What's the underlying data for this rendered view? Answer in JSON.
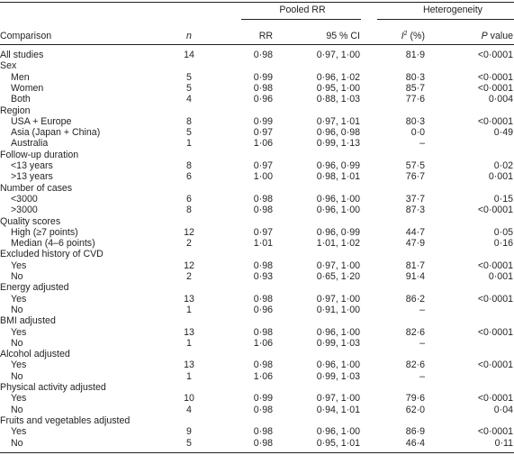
{
  "headers": {
    "comparison": "Comparison",
    "n": "n",
    "pooled_group": "Pooled RR",
    "rr": "RR",
    "ci": "95 % CI",
    "heterogeneity_group": "Heterogeneity",
    "i2_letter": "I",
    "i2_sup": "2",
    "i2_unit": " (%)",
    "p_letter": "P",
    "p_rest": " value"
  },
  "rows": [
    {
      "label": "All studies",
      "sub": false,
      "n": "14",
      "rr": "0·98",
      "ci": "0·97, 1·00",
      "i2": "81·9",
      "p": "<0·0001"
    },
    {
      "label": "Sex",
      "sub": false,
      "n": "",
      "rr": "",
      "ci": "",
      "i2": "",
      "p": ""
    },
    {
      "label": "Men",
      "sub": true,
      "n": "5",
      "rr": "0·99",
      "ci": "0·96, 1·02",
      "i2": "80·3",
      "p": "<0·0001"
    },
    {
      "label": "Women",
      "sub": true,
      "n": "5",
      "rr": "0·98",
      "ci": "0·95, 1·00",
      "i2": "85·7",
      "p": "<0·0001"
    },
    {
      "label": "Both",
      "sub": true,
      "n": "4",
      "rr": "0·96",
      "ci": "0·88, 1·03",
      "i2": "77·6",
      "p": "0·004"
    },
    {
      "label": "Region",
      "sub": false,
      "n": "",
      "rr": "",
      "ci": "",
      "i2": "",
      "p": ""
    },
    {
      "label": "USA + Europe",
      "sub": true,
      "n": "8",
      "rr": "0·99",
      "ci": "0·97, 1·01",
      "i2": "80·3",
      "p": "<0·0001"
    },
    {
      "label": "Asia (Japan + China)",
      "sub": true,
      "n": "5",
      "rr": "0·97",
      "ci": "0·96, 0·98",
      "i2": "0·0",
      "p": "0·49"
    },
    {
      "label": "Australia",
      "sub": true,
      "n": "1",
      "rr": "1·06",
      "ci": "0·99, 1·13",
      "i2": "–",
      "p": ""
    },
    {
      "label": "Follow-up duration",
      "sub": false,
      "n": "",
      "rr": "",
      "ci": "",
      "i2": "",
      "p": ""
    },
    {
      "label": "<13 years",
      "sub": true,
      "n": "8",
      "rr": "0·97",
      "ci": "0·96, 0·99",
      "i2": "57·5",
      "p": "0·02"
    },
    {
      "label": ">13 years",
      "sub": true,
      "n": "6",
      "rr": "1·00",
      "ci": "0·98, 1·01",
      "i2": "76·7",
      "p": "0·001"
    },
    {
      "label": "Number of cases",
      "sub": false,
      "n": "",
      "rr": "",
      "ci": "",
      "i2": "",
      "p": ""
    },
    {
      "label": "<3000",
      "sub": true,
      "n": "6",
      "rr": "0·98",
      "ci": "0·96, 1·00",
      "i2": "37·7",
      "p": "0·15"
    },
    {
      "label": ">3000",
      "sub": true,
      "n": "8",
      "rr": "0·98",
      "ci": "0·96, 1·00",
      "i2": "87·3",
      "p": "<0·0001"
    },
    {
      "label": "Quality scores",
      "sub": false,
      "n": "",
      "rr": "",
      "ci": "",
      "i2": "",
      "p": ""
    },
    {
      "label": "High (≥7 points)",
      "sub": true,
      "n": "12",
      "rr": "0·97",
      "ci": "0·96, 0·99",
      "i2": "44·7",
      "p": "0·05"
    },
    {
      "label": "Median (4–6 points)",
      "sub": true,
      "n": "2",
      "rr": "1·01",
      "ci": "1·01, 1·02",
      "i2": "47·9",
      "p": "0·16"
    },
    {
      "label": "Excluded history of CVD",
      "sub": false,
      "n": "",
      "rr": "",
      "ci": "",
      "i2": "",
      "p": ""
    },
    {
      "label": "Yes",
      "sub": true,
      "n": "12",
      "rr": "0·98",
      "ci": "0·97, 1·00",
      "i2": "81·7",
      "p": "<0·0001"
    },
    {
      "label": "No",
      "sub": true,
      "n": "2",
      "rr": "0·93",
      "ci": "0·65, 1·20",
      "i2": "91·4",
      "p": "0·001"
    },
    {
      "label": "Energy adjusted",
      "sub": false,
      "n": "",
      "rr": "",
      "ci": "",
      "i2": "",
      "p": ""
    },
    {
      "label": "Yes",
      "sub": true,
      "n": "13",
      "rr": "0·98",
      "ci": "0·97, 1·00",
      "i2": "86·2",
      "p": "<0·0001"
    },
    {
      "label": "No",
      "sub": true,
      "n": "1",
      "rr": "0·96",
      "ci": "0·91, 1·00",
      "i2": "–",
      "p": ""
    },
    {
      "label": "BMI adjusted",
      "sub": false,
      "n": "",
      "rr": "",
      "ci": "",
      "i2": "",
      "p": ""
    },
    {
      "label": "Yes",
      "sub": true,
      "n": "13",
      "rr": "0·98",
      "ci": "0·96, 1·00",
      "i2": "82·6",
      "p": "<0·0001"
    },
    {
      "label": "No",
      "sub": true,
      "n": "1",
      "rr": "1·06",
      "ci": "0·99, 1·03",
      "i2": "–",
      "p": ""
    },
    {
      "label": "Alcohol adjusted",
      "sub": false,
      "n": "",
      "rr": "",
      "ci": "",
      "i2": "",
      "p": ""
    },
    {
      "label": "Yes",
      "sub": true,
      "n": "13",
      "rr": "0·98",
      "ci": "0·96, 1·00",
      "i2": "82·6",
      "p": "<0·0001"
    },
    {
      "label": "No",
      "sub": true,
      "n": "1",
      "rr": "1·06",
      "ci": "0·99, 1·03",
      "i2": "–",
      "p": ""
    },
    {
      "label": "Physical activity adjusted",
      "sub": false,
      "n": "",
      "rr": "",
      "ci": "",
      "i2": "",
      "p": ""
    },
    {
      "label": "Yes",
      "sub": true,
      "n": "10",
      "rr": "0·99",
      "ci": "0·97, 1·00",
      "i2": "79·6",
      "p": "<0·0001"
    },
    {
      "label": "No",
      "sub": true,
      "n": "4",
      "rr": "0·98",
      "ci": "0·94, 1·01",
      "i2": "62·0",
      "p": "0·04"
    },
    {
      "label": "Fruits and vegetables adjusted",
      "sub": false,
      "n": "",
      "rr": "",
      "ci": "",
      "i2": "",
      "p": ""
    },
    {
      "label": "Yes",
      "sub": true,
      "n": "9",
      "rr": "0·98",
      "ci": "0·96, 1·00",
      "i2": "86·9",
      "p": "<0·0001"
    },
    {
      "label": "No",
      "sub": true,
      "n": "5",
      "rr": "0·98",
      "ci": "0·95, 1·01",
      "i2": "46·4",
      "p": "0·11"
    }
  ]
}
